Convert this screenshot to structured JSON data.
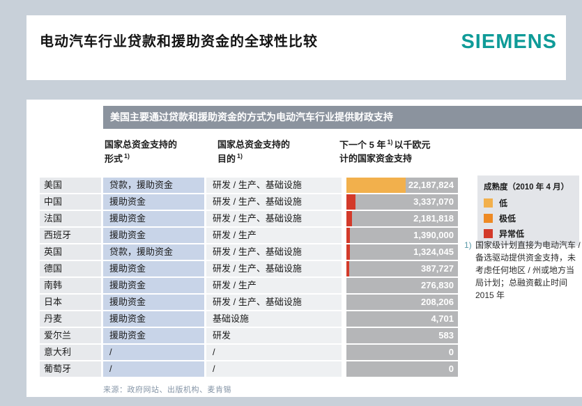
{
  "page": {
    "title": "电动汽车行业贷款和援助资金的全球性比较",
    "logo": "SIEMENS"
  },
  "banner": {
    "text": "美国主要通过贷款和援助资金的方式为电动汽车行业提供财政支持"
  },
  "table": {
    "columns": [
      {
        "line1": "国家总资金支持的",
        "line2": "形式",
        "sup": "1)"
      },
      {
        "line1": "国家总资金支持的",
        "line2": "目的",
        "sup": "1)"
      },
      {
        "line1_pre": "下一个 5 年",
        "sup": "1)",
        "line1_post": "以千欧元",
        "line2": "计的国家资金支持"
      }
    ],
    "max_value": 22187824,
    "rows": [
      {
        "country": "美国",
        "form": "贷款，援助资金",
        "purpose": "研发 / 生产、基础设施",
        "value": 22187824,
        "value_label": "22,187,824",
        "bar_color": "#f2b04c"
      },
      {
        "country": "中国",
        "form": "援助资金",
        "purpose": "研发 / 生产、基础设施",
        "value": 3337070,
        "value_label": "3,337,070",
        "bar_color": "#d33a2a"
      },
      {
        "country": "法国",
        "form": "援助资金",
        "purpose": "研发 / 生产、基础设施",
        "value": 2181818,
        "value_label": "2,181,818",
        "bar_color": "#d33a2a"
      },
      {
        "country": "西班牙",
        "form": "援助资金",
        "purpose": "研发 / 生产",
        "value": 1390000,
        "value_label": "1,390,000",
        "bar_color": "#d33a2a"
      },
      {
        "country": "英国",
        "form": "贷款，援助资金",
        "purpose": "研发 / 生产、基础设施",
        "value": 1324045,
        "value_label": "1,324,045",
        "bar_color": "#d33a2a"
      },
      {
        "country": "德国",
        "form": "援助资金",
        "purpose": "研发 / 生产、基础设施",
        "value": 387727,
        "value_label": "387,727",
        "bar_color": "#d33a2a"
      },
      {
        "country": "南韩",
        "form": "援助资金",
        "purpose": "研发 / 生产",
        "value": 276830,
        "value_label": "276,830",
        "bar_color": null
      },
      {
        "country": "日本",
        "form": "援助资金",
        "purpose": "研发 / 生产、基础设施",
        "value": 208206,
        "value_label": "208,206",
        "bar_color": null
      },
      {
        "country": "丹麦",
        "form": "援助资金",
        "purpose": "基础设施",
        "value": 4701,
        "value_label": "4,701",
        "bar_color": null
      },
      {
        "country": "爱尔兰",
        "form": "援助资金",
        "purpose": "研发",
        "value": 583,
        "value_label": "583",
        "bar_color": null
      },
      {
        "country": "意大利",
        "form": "/",
        "purpose": "/",
        "value": 0,
        "value_label": "0",
        "bar_color": null
      },
      {
        "country": "葡萄牙",
        "form": "/",
        "purpose": "/",
        "value": 0,
        "value_label": "0",
        "bar_color": null
      }
    ]
  },
  "legend": {
    "title": "成熟度（2010 年 4 月）",
    "items": [
      {
        "label": "低",
        "color": "#f2b04c"
      },
      {
        "label": "极低",
        "color": "#ee8a24"
      },
      {
        "label": "异常低",
        "color": "#d33a2a"
      }
    ]
  },
  "footnote": {
    "marker": "1)",
    "text": "国家级计划直接为电动汽车 / 备选驱动提供资金支持，未考虑任何地区 / 州或地方当局计划；总融资截止时间 2015 年"
  },
  "source": {
    "text": "来源：政府网站、出版机构、麦肯锡"
  },
  "colors": {
    "page_background": "#c8d0d9",
    "banner_background": "#8b939e",
    "country_cell": "#e7e9ec",
    "form_cell": "#c8d4e8",
    "purpose_cell": "#eef0f2",
    "bar_track": "#b5b6b8",
    "siemens_teal": "#0f9b98",
    "footnote_marker": "#5b9aa9"
  },
  "chart_data": {
    "type": "bar",
    "title": "下一个 5 年 1) 以千欧元计的国家资金支持",
    "unit": "千欧元 (thousand EUR)",
    "categories": [
      "美国",
      "中国",
      "法国",
      "西班牙",
      "英国",
      "德国",
      "南韩",
      "日本",
      "丹麦",
      "爱尔兰",
      "意大利",
      "葡萄牙"
    ],
    "values": [
      22187824,
      3337070,
      2181818,
      1390000,
      1324045,
      387727,
      276830,
      208206,
      4701,
      583,
      0,
      0
    ],
    "xlim": [
      0,
      22187824
    ],
    "legend_title": "成熟度（2010 年 4 月）",
    "legend": [
      "低",
      "极低",
      "异常低"
    ],
    "bar_maturity": [
      "低",
      "异常低",
      "异常低",
      "异常低",
      "异常低",
      "异常低",
      null,
      null,
      null,
      null,
      null,
      null
    ],
    "orientation": "horizontal",
    "grid": false,
    "value_labels_shown": true
  }
}
